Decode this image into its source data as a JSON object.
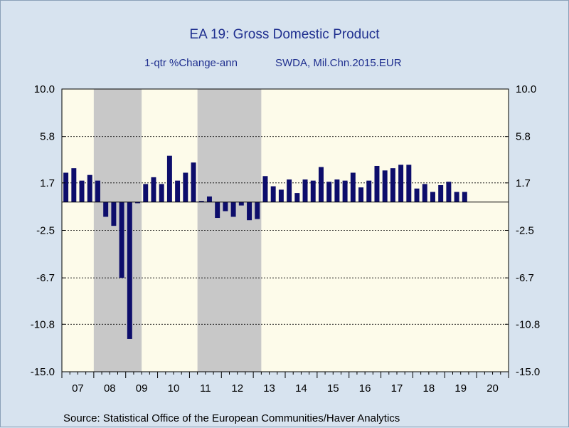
{
  "chart_data": {
    "type": "bar",
    "title": "EA 19: Gross Domestic Product",
    "subtitle_left": "1-qtr %Change-ann",
    "subtitle_right": "SWDA, Mil.Chn.2015.EUR",
    "source": "Source:  Statistical Office of the European Communities/Haver Analytics",
    "ylim": [
      -15.0,
      10.0
    ],
    "y_ticks": [
      "10.0",
      "5.8",
      "1.7",
      "-2.5",
      "-6.7",
      "-10.8",
      "-15.0"
    ],
    "y_tick_values": [
      10.0,
      5.8,
      1.7,
      -2.5,
      -6.7,
      -10.8,
      -15.0
    ],
    "x_year_labels": [
      "07",
      "08",
      "09",
      "10",
      "11",
      "12",
      "13",
      "14",
      "15",
      "16",
      "17",
      "18",
      "19",
      "20"
    ],
    "x_start": "2007-Q1",
    "x_end": "2020-Q4",
    "recession_shading": [
      {
        "start": "2008-Q1",
        "end": "2009-Q2"
      },
      {
        "start": "2011-Q2",
        "end": "2013-Q1"
      }
    ],
    "grid": "dashed horizontal at y ticks",
    "colors": {
      "bar": "#0d0d6b",
      "plot_background": "#fdfbea",
      "recession": "#c8c8c8",
      "page_background": "#d7e3ef",
      "title": "#1f2f8f"
    },
    "series": [
      {
        "values": [
          2.6,
          3.0,
          1.9,
          2.4,
          1.9,
          -1.3,
          -2.1,
          -6.7,
          -12.1,
          -0.1,
          1.6,
          2.2,
          1.6,
          4.1,
          1.9,
          2.6,
          3.5,
          0.1,
          0.5,
          -1.4,
          -0.8,
          -1.3,
          -0.3,
          -1.6,
          -1.5,
          2.3,
          1.4,
          1.1,
          2.0,
          0.8,
          2.0,
          1.9,
          3.1,
          1.8,
          2.0,
          1.9,
          2.6,
          1.3,
          1.9,
          3.2,
          2.8,
          3.0,
          3.3,
          3.3,
          1.2,
          1.6,
          0.9,
          1.5,
          1.8,
          0.9,
          0.9
        ]
      }
    ]
  }
}
